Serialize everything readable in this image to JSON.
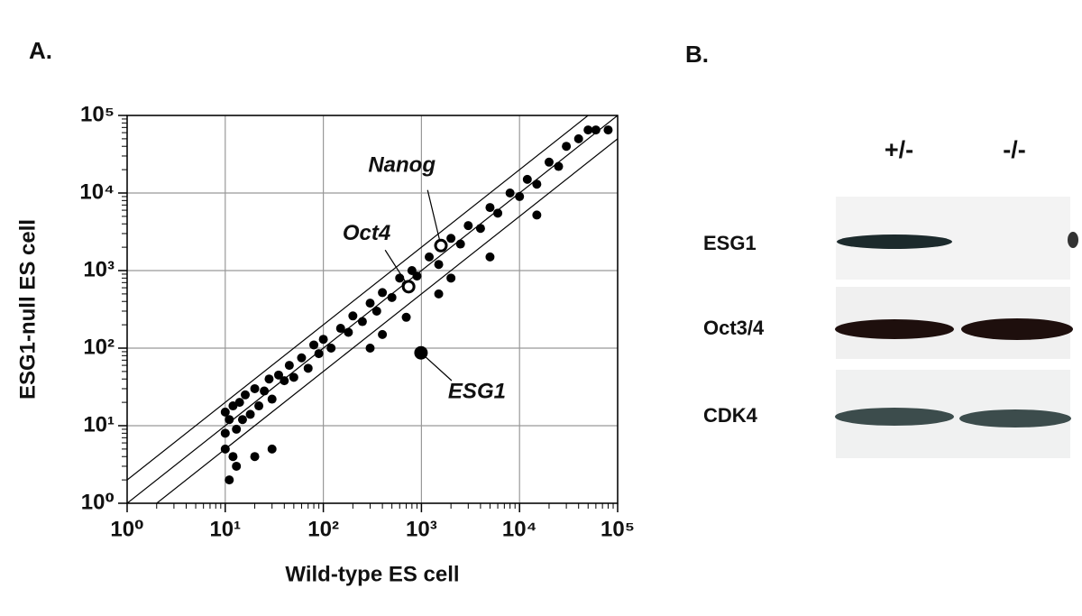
{
  "panel_a_label": "A.",
  "chart_data": {
    "type": "scatter",
    "x_label": "Wild-type ES cell",
    "y_label": "ESG1-null ES cell",
    "xlim": [
      1,
      100000
    ],
    "ylim": [
      1,
      100000
    ],
    "log_x": true,
    "log_y": true,
    "grid": true,
    "xticks": [
      {
        "value": 1,
        "label": "10⁰"
      },
      {
        "value": 10,
        "label": "10¹"
      },
      {
        "value": 100,
        "label": "10²"
      },
      {
        "value": 1000,
        "label": "10³"
      },
      {
        "value": 10000,
        "label": "10⁴"
      },
      {
        "value": 100000,
        "label": "10⁵"
      }
    ],
    "yticks": [
      {
        "value": 1,
        "label": "10⁰"
      },
      {
        "value": 10,
        "label": "10¹"
      },
      {
        "value": 100,
        "label": "10²"
      },
      {
        "value": 1000,
        "label": "10³"
      },
      {
        "value": 10000,
        "label": "10⁴"
      },
      {
        "value": 100000,
        "label": "10⁵"
      }
    ],
    "reference_lines": [
      0.5,
      1,
      2
    ],
    "color": "#000000",
    "x": [
      10,
      10,
      10,
      11,
      12,
      12,
      13,
      14,
      15,
      16,
      18,
      20,
      22,
      25,
      28,
      30,
      35,
      40,
      45,
      50,
      60,
      70,
      80,
      90,
      100,
      120,
      150,
      180,
      200,
      250,
      300,
      350,
      400,
      500,
      600,
      700,
      800,
      900,
      1200,
      1500,
      2000,
      2500,
      3000,
      4000,
      5000,
      6000,
      8000,
      10000,
      12000,
      15000,
      20000,
      25000,
      30000,
      40000,
      50000,
      60000,
      80000,
      11,
      13,
      20,
      30,
      300,
      400,
      700,
      1500,
      2000,
      5000,
      15000
    ],
    "y": [
      15,
      8,
      5,
      12,
      18,
      4,
      9,
      20,
      12,
      25,
      14,
      30,
      18,
      28,
      40,
      22,
      45,
      38,
      60,
      42,
      75,
      55,
      110,
      85,
      130,
      100,
      180,
      160,
      260,
      220,
      380,
      300,
      520,
      450,
      800,
      650,
      1000,
      850,
      1500,
      1200,
      2600,
      2200,
      3800,
      3500,
      6500,
      5500,
      10000,
      9000,
      15000,
      13000,
      25000,
      22000,
      40000,
      50000,
      65000,
      65000,
      65000,
      2,
      3,
      4,
      5,
      100,
      150,
      250,
      500,
      800,
      1500,
      5200
    ],
    "highlights": [
      {
        "label": "Oct4",
        "x": 740,
        "y": 620,
        "color": "#ffffff"
      },
      {
        "label": "Nanog",
        "x": 1580,
        "y": 2100,
        "color": "#ffffff"
      },
      {
        "label": "ESG1",
        "x": 990,
        "y": 87,
        "color": "#000000"
      }
    ]
  },
  "blot": {
    "label": "B.",
    "lanes": [
      "+/-",
      "-/-"
    ],
    "rows": [
      "ESG1",
      "Oct3/4",
      "CDK4"
    ]
  }
}
